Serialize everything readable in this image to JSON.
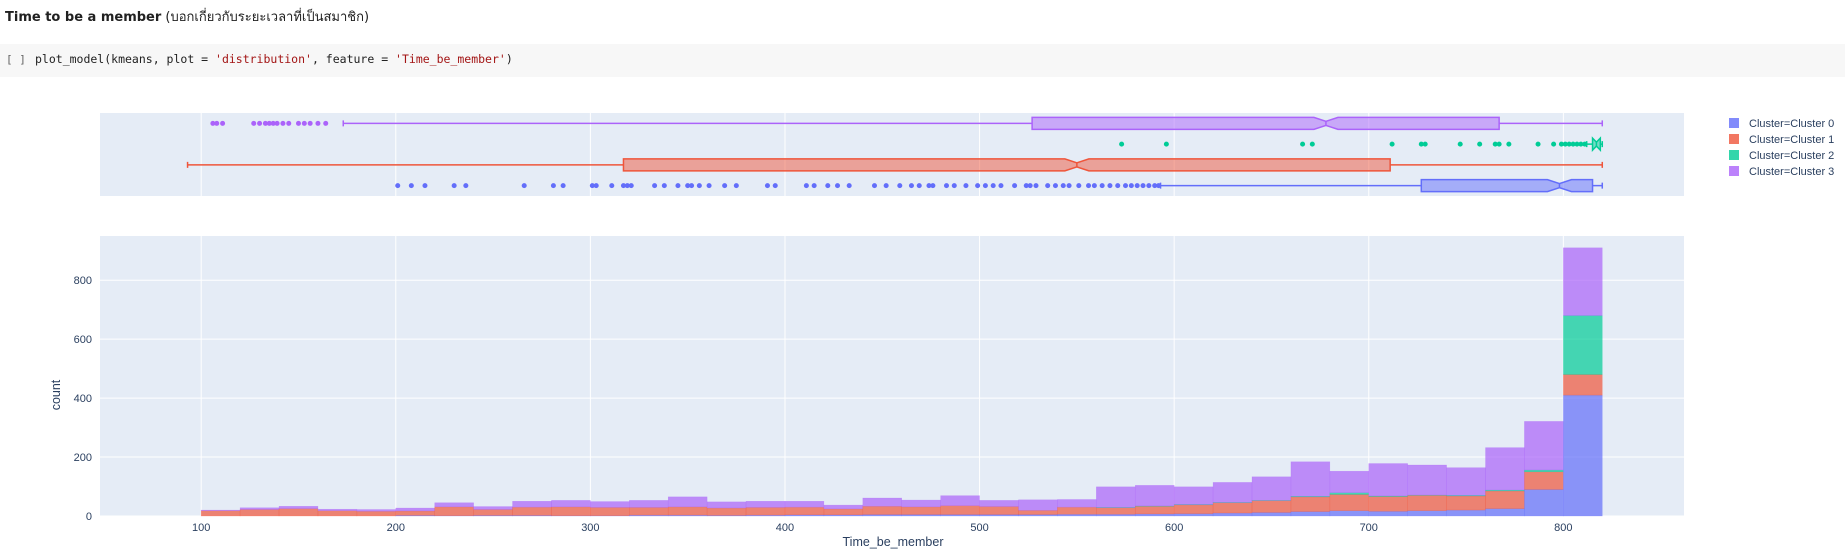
{
  "section_heading": {
    "bold": "Time to be a member",
    "rest": " (บอกเกี่ยวกับระยะเวลาที่เป็นสมาชิก)"
  },
  "code_cell": {
    "bracket": "[ ]",
    "code_prefix": "plot_model(kmeans, plot = ",
    "code_str1": "'distribution'",
    "code_middle": ", feature = ",
    "code_str2": "'Time_be_member'",
    "code_suffix": ")"
  },
  "chart_data": {
    "type": "bar",
    "subtype": "stacked histogram with marginal notched box plots",
    "xlabel": "Time_be_member",
    "ylabel": "count",
    "xlim": [
      48,
      862
    ],
    "ylim": [
      0,
      950
    ],
    "x_ticks": [
      100,
      200,
      300,
      400,
      500,
      600,
      700,
      800
    ],
    "y_ticks": [
      0,
      200,
      400,
      600,
      800
    ],
    "grid": true,
    "legend_position": "right",
    "bin_width": 20,
    "bin_starts": [
      100,
      120,
      140,
      160,
      180,
      200,
      220,
      240,
      260,
      280,
      300,
      320,
      340,
      360,
      380,
      400,
      420,
      440,
      460,
      480,
      500,
      520,
      540,
      560,
      580,
      600,
      620,
      640,
      660,
      680,
      700,
      720,
      740,
      760,
      780,
      800
    ],
    "series": [
      {
        "name": "Cluster=Cluster 0",
        "color": "#636efa",
        "values": [
          0,
          0,
          0,
          0,
          0,
          2,
          1,
          2,
          2,
          1,
          1,
          3,
          3,
          2,
          3,
          4,
          4,
          5,
          5,
          5,
          5,
          5,
          6,
          6,
          7,
          8,
          10,
          12,
          15,
          18,
          16,
          18,
          20,
          25,
          90,
          410
        ]
      },
      {
        "name": "Cluster=Cluster 1",
        "color": "#ef553b",
        "values": [
          18,
          22,
          25,
          18,
          16,
          15,
          30,
          20,
          28,
          30,
          28,
          26,
          28,
          25,
          26,
          26,
          20,
          28,
          26,
          30,
          27,
          14,
          24,
          22,
          26,
          30,
          35,
          40,
          50,
          55,
          50,
          52,
          48,
          60,
          60,
          70
        ]
      },
      {
        "name": "Cluster=Cluster 2",
        "color": "#00cc96",
        "values": [
          0,
          0,
          0,
          0,
          0,
          0,
          0,
          0,
          0,
          0,
          0,
          0,
          0,
          0,
          0,
          0,
          0,
          0,
          0,
          0,
          0,
          0,
          0,
          1,
          1,
          1,
          1,
          1,
          2,
          6,
          2,
          1,
          2,
          3,
          6,
          200
        ]
      },
      {
        "name": "Cluster=Cluster 3",
        "color": "#ab63fa",
        "values": [
          2,
          6,
          8,
          5,
          6,
          10,
          14,
          10,
          20,
          22,
          20,
          24,
          34,
          21,
          21,
          20,
          13,
          28,
          23,
          34,
          21,
          36,
          26,
          70,
          70,
          60,
          68,
          80,
          117,
          73,
          110,
          102,
          94,
          144,
          165,
          230
        ]
      }
    ],
    "box_plots": [
      {
        "name": "Cluster=Cluster 3",
        "q1": 527,
        "median": 678,
        "q3": 767,
        "lower_fence": 173,
        "upper_fence": 820,
        "outliers": [
          106,
          108,
          111,
          127,
          130,
          133,
          135,
          137,
          139,
          142,
          145,
          150,
          153,
          156,
          160,
          164
        ]
      },
      {
        "name": "Cluster=Cluster 2",
        "q1": 815,
        "median": 817,
        "q3": 819,
        "lower_fence": 812,
        "upper_fence": 820,
        "outliers": [
          573,
          596,
          666,
          671,
          712,
          727,
          729,
          747,
          757,
          765,
          767,
          772,
          787,
          795,
          799,
          801,
          803,
          805,
          807,
          809,
          811
        ]
      },
      {
        "name": "Cluster=Cluster 1",
        "q1": 317,
        "median": 550,
        "q3": 711,
        "lower_fence": 93,
        "upper_fence": 820,
        "outliers": []
      },
      {
        "name": "Cluster=Cluster 0",
        "q1": 727,
        "median": 798,
        "q3": 815,
        "lower_fence": 593,
        "upper_fence": 820,
        "outliers": [
          201,
          208,
          215,
          230,
          236,
          266,
          281,
          286,
          301,
          303,
          311,
          317,
          319,
          321,
          333,
          338,
          345,
          350,
          352,
          356,
          361,
          369,
          375,
          391,
          395,
          411,
          415,
          422,
          427,
          433,
          446,
          452,
          459,
          465,
          469,
          474,
          476,
          483,
          487,
          493,
          499,
          503,
          507,
          511,
          518,
          524,
          526,
          529,
          535,
          539,
          543,
          546,
          551,
          556,
          559,
          563,
          567,
          571,
          575,
          578,
          581,
          584,
          587,
          590,
          592
        ]
      }
    ]
  }
}
